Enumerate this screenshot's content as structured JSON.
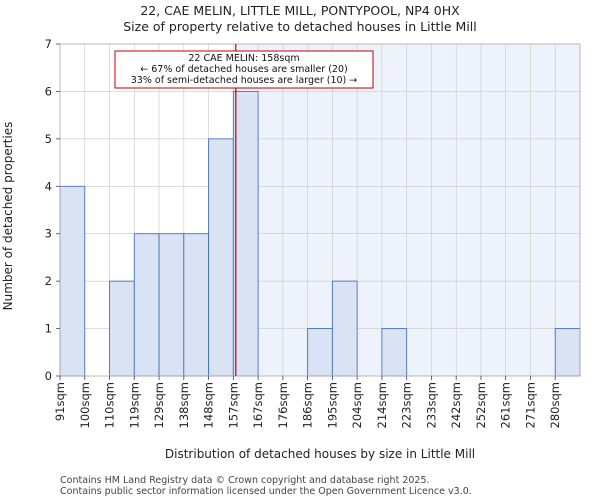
{
  "chart_data": {
    "type": "bar",
    "title": "22, CAE MELIN, LITTLE MILL, PONTYPOOL, NP4 0HX",
    "subtitle": "Size of property relative to detached houses in Little Mill",
    "xlabel": "Distribution of detached houses by size in Little Mill",
    "ylabel": "Number of detached properties",
    "categories": [
      "91sqm",
      "100sqm",
      "110sqm",
      "119sqm",
      "129sqm",
      "138sqm",
      "148sqm",
      "157sqm",
      "167sqm",
      "176sqm",
      "186sqm",
      "195sqm",
      "204sqm",
      "214sqm",
      "223sqm",
      "233sqm",
      "242sqm",
      "252sqm",
      "261sqm",
      "271sqm",
      "280sqm"
    ],
    "values": [
      4,
      0,
      2,
      3,
      3,
      3,
      5,
      6,
      0,
      0,
      1,
      2,
      0,
      1,
      0,
      0,
      0,
      0,
      0,
      0,
      1
    ],
    "ylim": [
      0,
      7
    ],
    "yticks": [
      0,
      1,
      2,
      3,
      4,
      5,
      6,
      7
    ],
    "property_line_value": 158,
    "property_line_bin_index": 7.1,
    "annotation": {
      "line1": "22 CAE MELIN: 158sqm",
      "line2": "← 67% of detached houses are smaller (20)",
      "line3": "33% of semi-detached houses are larger (10) →"
    },
    "colors": {
      "bar_fill": "#dae3f3",
      "bar_stroke": "#4472c4",
      "highlight_bg": "#eef2fb",
      "property_line": "#c00000",
      "grid": "#c8c8c8"
    }
  },
  "footer": {
    "line1": "Contains HM Land Registry data © Crown copyright and database right 2025.",
    "line2": "Contains public sector information licensed under the Open Government Licence v3.0."
  }
}
